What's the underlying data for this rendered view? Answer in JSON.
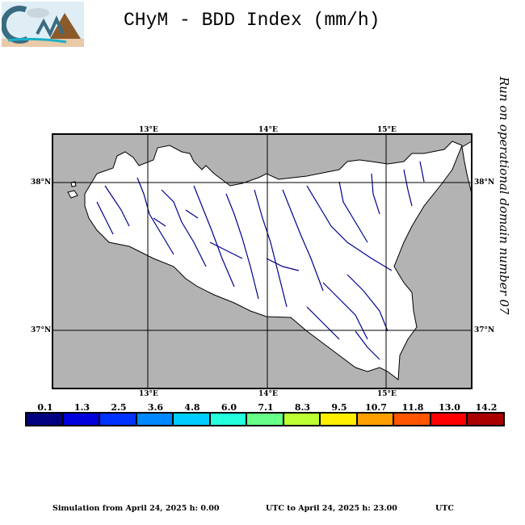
{
  "header": {
    "title": "CHyM - BDD Index (mm/h)",
    "logo_text": "CHyM"
  },
  "side_note": "Run on operational domain number 07",
  "map": {
    "lon_labels": [
      "13°E",
      "14°E",
      "15°E"
    ],
    "lat_labels": [
      "38°N",
      "37°N"
    ],
    "colors": {
      "sea": "#b3b3b3",
      "land": "#ffffff",
      "river": "#00008b"
    }
  },
  "colorbar": {
    "labels": [
      "0.1",
      "1.3",
      "2.5",
      "3.6",
      "4.8",
      "6.0",
      "7.1",
      "8.3",
      "9.5",
      "10.7",
      "11.8",
      "13.0",
      "14.2"
    ],
    "colors": [
      "#000080",
      "#0000dd",
      "#0033ff",
      "#0088ff",
      "#00ccff",
      "#22ffdd",
      "#66ff88",
      "#bbff33",
      "#ffee00",
      "#ffa000",
      "#ff5500",
      "#ff0000",
      "#aa0000"
    ]
  },
  "footer": {
    "from": "Simulation from April 24, 2025 h: 0.00",
    "to": "UTC to April 24, 2025 h: 23.00",
    "tz": "UTC"
  }
}
